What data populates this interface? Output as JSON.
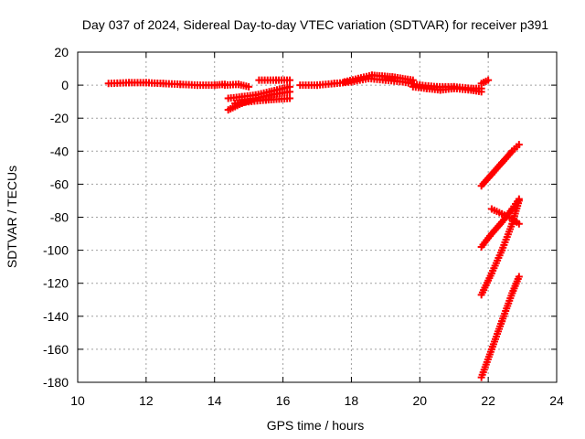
{
  "chart_data": {
    "type": "scatter",
    "title": "Day 037 of 2024, Sidereal Day-to-day VTEC variation (SDTVAR) for receiver p391",
    "xlabel": "GPS time / hours",
    "ylabel": "SDTVAR / TECUs",
    "xlim": [
      10,
      24
    ],
    "ylim": [
      -180,
      20
    ],
    "xticks": [
      10,
      12,
      14,
      16,
      18,
      20,
      22,
      24
    ],
    "yticks": [
      20,
      0,
      -20,
      -40,
      -60,
      -80,
      -100,
      -120,
      -140,
      -160,
      -180
    ],
    "grid": true,
    "legend": "none",
    "marker": "plus",
    "series_color": "#ff0000",
    "series": [
      {
        "x": [
          10.9,
          11.5,
          12.0,
          12.5,
          13.0,
          13.5,
          14.0,
          14.3
        ],
        "y": [
          1,
          1.5,
          1.5,
          1,
          0.5,
          0,
          0,
          0.5
        ]
      },
      {
        "x": [
          14.3,
          14.7,
          15.0
        ],
        "y": [
          0,
          0.5,
          -1
        ]
      },
      {
        "x": [
          14.4,
          14.8,
          15.2,
          15.6,
          16.2
        ],
        "y": [
          -8,
          -7,
          -6,
          -4,
          -1
        ]
      },
      {
        "x": [
          14.4,
          14.8,
          15.2,
          15.6,
          16.2
        ],
        "y": [
          -15,
          -11,
          -8,
          -6,
          -4
        ]
      },
      {
        "x": [
          14.6,
          15.0,
          15.5,
          16.2
        ],
        "y": [
          -11,
          -10,
          -9,
          -8
        ]
      },
      {
        "x": [
          15.3,
          15.8,
          16.2
        ],
        "y": [
          3,
          3,
          3
        ]
      },
      {
        "x": [
          16.5,
          17.0,
          17.5,
          18.0,
          18.5,
          19.0,
          19.5,
          20.0,
          20.5,
          21.0,
          21.5,
          21.8
        ],
        "y": [
          0,
          0,
          1,
          2,
          4,
          3,
          2,
          0,
          -1,
          -1,
          -2,
          -2
        ]
      },
      {
        "x": [
          17.8,
          18.2,
          18.6,
          19.2,
          19.8
        ],
        "y": [
          2,
          4,
          6,
          5,
          3
        ]
      },
      {
        "x": [
          19.8,
          20.2,
          20.6,
          21.0,
          21.5,
          21.8
        ],
        "y": [
          -1,
          -2,
          -3,
          -2,
          -3,
          -4
        ]
      },
      {
        "x": [
          21.8,
          22.0
        ],
        "y": [
          1,
          3
        ]
      },
      {
        "x": [
          21.8,
          22.1,
          22.4,
          22.7,
          22.9
        ],
        "y": [
          -61,
          -54,
          -47,
          -40,
          -36
        ]
      },
      {
        "x": [
          22.1,
          22.4,
          22.7,
          22.9
        ],
        "y": [
          -75,
          -78,
          -81,
          -84
        ]
      },
      {
        "x": [
          21.8,
          22.1,
          22.4,
          22.7,
          22.9
        ],
        "y": [
          -98,
          -90,
          -83,
          -75,
          -69
        ]
      },
      {
        "x": [
          21.8,
          22.1,
          22.4,
          22.7,
          22.9
        ],
        "y": [
          -127,
          -114,
          -100,
          -84,
          -70
        ]
      },
      {
        "x": [
          21.8,
          22.1,
          22.4,
          22.7,
          22.9
        ],
        "y": [
          -177,
          -160,
          -143,
          -126,
          -116
        ]
      }
    ]
  }
}
